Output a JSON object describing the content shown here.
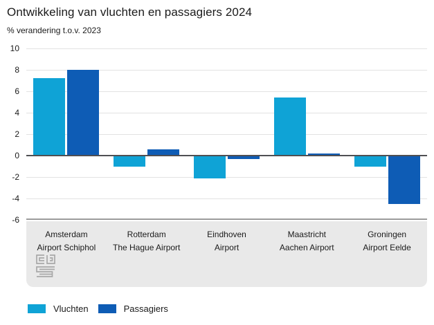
{
  "title": "Ontwikkeling van vluchten en passagiers 2024",
  "subtitle": "% verandering t.o.v. 2023",
  "logo": "cbs-logo",
  "colors": {
    "vluchten": "#0fa3d6",
    "passagiers": "#0e5cb5",
    "gridline": "#e2e2e2",
    "zeroline": "#4f4f52",
    "axisline": "#9b9b9b",
    "band_background": "#e9e9e9",
    "logo_gray": "#a8a8a8"
  },
  "legend": [
    {
      "label": "Vluchten",
      "color": "#0fa3d6"
    },
    {
      "label": "Passagiers",
      "color": "#0e5cb5"
    }
  ],
  "chart_data": {
    "type": "bar",
    "title": "Ontwikkeling van vluchten en passagiers 2024",
    "subtitle": "% verandering t.o.v. 2023",
    "ylabel": "% verandering t.o.v. 2023",
    "xlabel": "",
    "categories": [
      {
        "line1": "Amsterdam",
        "line2": "Airport Schiphol"
      },
      {
        "line1": "Rotterdam",
        "line2": "The Hague Airport"
      },
      {
        "line1": "Eindhoven",
        "line2": "Airport"
      },
      {
        "line1": "Maastricht",
        "line2": "Aachen Airport"
      },
      {
        "line1": "Groningen",
        "line2": "Airport Eelde"
      }
    ],
    "series": [
      {
        "name": "Vluchten",
        "color": "#0fa3d6",
        "values": [
          7.2,
          -1.0,
          -2.1,
          5.4,
          -1.0
        ]
      },
      {
        "name": "Passagiers",
        "color": "#0e5cb5",
        "values": [
          8.0,
          0.6,
          -0.3,
          0.2,
          -4.5
        ]
      }
    ],
    "ylim": [
      -6,
      10
    ],
    "yticks": [
      10,
      8,
      6,
      4,
      2,
      0,
      -2,
      -4,
      -6
    ],
    "grid": true,
    "legend_position": "bottom"
  }
}
